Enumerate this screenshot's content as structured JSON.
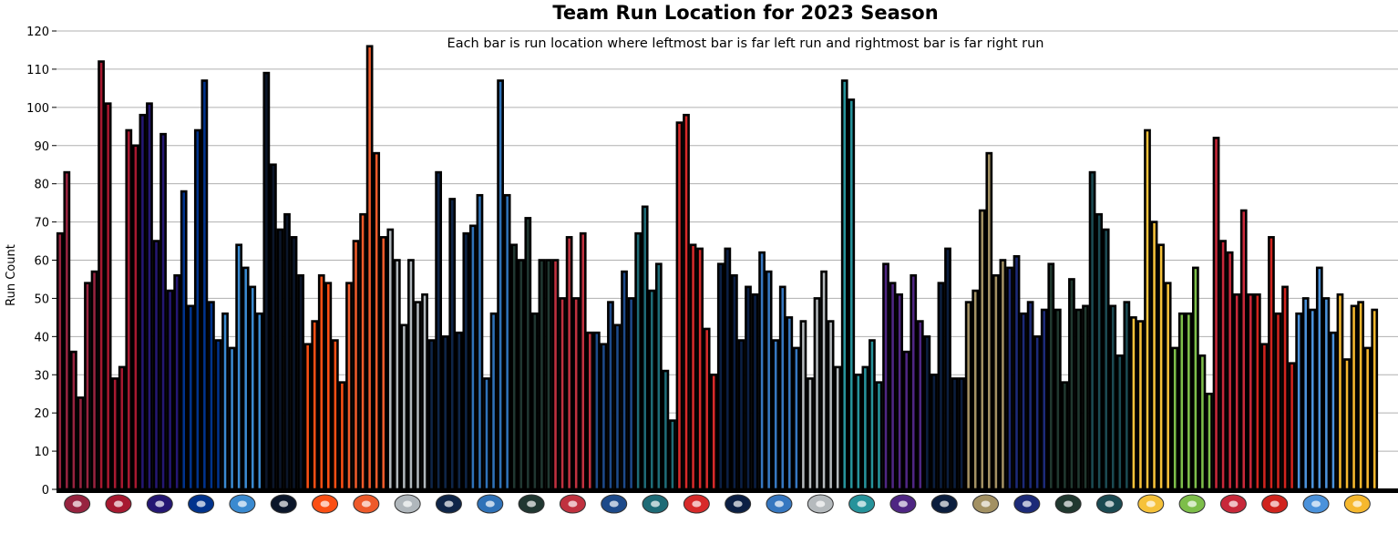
{
  "chart_data": {
    "type": "bar",
    "title": "Team Run Location for 2023 Season",
    "subtitle": "Each bar is run location where leftmost bar is far left run and rightmost bar is far right run",
    "xlabel": "",
    "ylabel": "Run Count",
    "ylim": [
      0,
      120
    ],
    "yticks": [
      "0",
      "10",
      "20",
      "30",
      "40",
      "50",
      "60",
      "70",
      "80",
      "90",
      "100",
      "110",
      "120"
    ],
    "grid": true,
    "bars_per_team": 6,
    "teams": [
      {
        "logo": "cardinals-logo",
        "color": "#97233F",
        "values": [
          67,
          83,
          36,
          24,
          54,
          57
        ]
      },
      {
        "logo": "falcons-logo",
        "color": "#A71930",
        "values": [
          112,
          101,
          29,
          32,
          94,
          90
        ]
      },
      {
        "logo": "ravens-logo",
        "color": "#241773",
        "values": [
          98,
          101,
          65,
          93,
          52,
          56
        ]
      },
      {
        "logo": "bills-logo",
        "color": "#00338D",
        "values": [
          78,
          48,
          94,
          107,
          49,
          39
        ]
      },
      {
        "logo": "panthers-logo",
        "color": "#3A8AD0",
        "values": [
          46,
          37,
          64,
          58,
          53,
          46
        ]
      },
      {
        "logo": "bears-logo",
        "color": "#0B162A",
        "values": [
          109,
          85,
          68,
          72,
          66,
          56
        ]
      },
      {
        "logo": "bengals-logo",
        "color": "#FB4F14",
        "values": [
          38,
          44,
          56,
          54,
          39,
          28
        ]
      },
      {
        "logo": "browns-logo",
        "color": "#EE5A2A",
        "values": [
          54,
          65,
          72,
          116,
          88,
          66
        ]
      },
      {
        "logo": "cowboys-logo",
        "color": "#B0B7BC",
        "values": [
          68,
          60,
          43,
          60,
          49,
          51
        ]
      },
      {
        "logo": "broncos-logo",
        "color": "#0E2548",
        "values": [
          39,
          83,
          40,
          76,
          41,
          67
        ]
      },
      {
        "logo": "lions-logo",
        "color": "#2F72B8",
        "values": [
          69,
          77,
          29,
          46,
          107,
          77
        ]
      },
      {
        "logo": "packers-logo",
        "color": "#203731",
        "values": [
          64,
          60,
          71,
          46,
          60,
          60
        ]
      },
      {
        "logo": "texans-logo",
        "color": "#C0313F",
        "values": [
          60,
          50,
          66,
          50,
          67,
          41
        ]
      },
      {
        "logo": "colts-logo",
        "color": "#1D4A8A",
        "values": [
          41,
          38,
          49,
          43,
          57,
          50
        ]
      },
      {
        "logo": "jaguars-logo",
        "color": "#1E6B76",
        "values": [
          67,
          74,
          52,
          59,
          31,
          18
        ]
      },
      {
        "logo": "chiefs-logo",
        "color": "#D72A2A",
        "values": [
          96,
          98,
          64,
          63,
          42,
          30
        ]
      },
      {
        "logo": "rams-logo",
        "color": "#0B1F44",
        "values": [
          59,
          63,
          56,
          39,
          53,
          51
        ]
      },
      {
        "logo": "chargers-logo",
        "color": "#3677C0",
        "values": [
          62,
          57,
          39,
          53,
          45,
          37
        ]
      },
      {
        "logo": "raiders-logo",
        "color": "#B5BABD",
        "values": [
          44,
          29,
          50,
          57,
          44,
          32
        ]
      },
      {
        "logo": "dolphins-logo",
        "color": "#26939B",
        "values": [
          107,
          102,
          30,
          32,
          39,
          28
        ]
      },
      {
        "logo": "vikings-logo",
        "color": "#4F2683",
        "values": [
          59,
          54,
          51,
          36,
          56,
          44
        ]
      },
      {
        "logo": "patriots-logo",
        "color": "#0B1E3E",
        "values": [
          40,
          30,
          54,
          63,
          29,
          29
        ]
      },
      {
        "logo": "saints-logo",
        "color": "#A39163",
        "values": [
          49,
          52,
          73,
          88,
          56,
          60
        ]
      },
      {
        "logo": "giants-logo",
        "color": "#1C2A78",
        "values": [
          58,
          61,
          46,
          49,
          40,
          47
        ]
      },
      {
        "logo": "jets-logo",
        "color": "#20382F",
        "values": [
          59,
          47,
          28,
          55,
          47,
          48
        ]
      },
      {
        "logo": "eagles-logo",
        "color": "#1B4A52",
        "values": [
          83,
          72,
          68,
          48,
          35,
          49
        ]
      },
      {
        "logo": "steelers-logo",
        "color": "#F6C23A",
        "values": [
          45,
          44,
          94,
          70,
          64,
          54
        ]
      },
      {
        "logo": "seahawks-logo",
        "color": "#7DBE4A",
        "values": [
          37,
          46,
          46,
          58,
          35,
          25
        ]
      },
      {
        "logo": "49ers-logo",
        "color": "#C8283A",
        "values": [
          92,
          65,
          62,
          51,
          73,
          51
        ]
      },
      {
        "logo": "buccaneers-logo",
        "color": "#D0241E",
        "values": [
          51,
          38,
          66,
          46,
          53,
          33
        ]
      },
      {
        "logo": "titans-logo",
        "color": "#4B92DB",
        "values": [
          46,
          50,
          47,
          58,
          50,
          41
        ]
      },
      {
        "logo": "commanders-logo",
        "color": "#F6B82E",
        "values": [
          51,
          34,
          48,
          49,
          37,
          47
        ]
      }
    ]
  }
}
